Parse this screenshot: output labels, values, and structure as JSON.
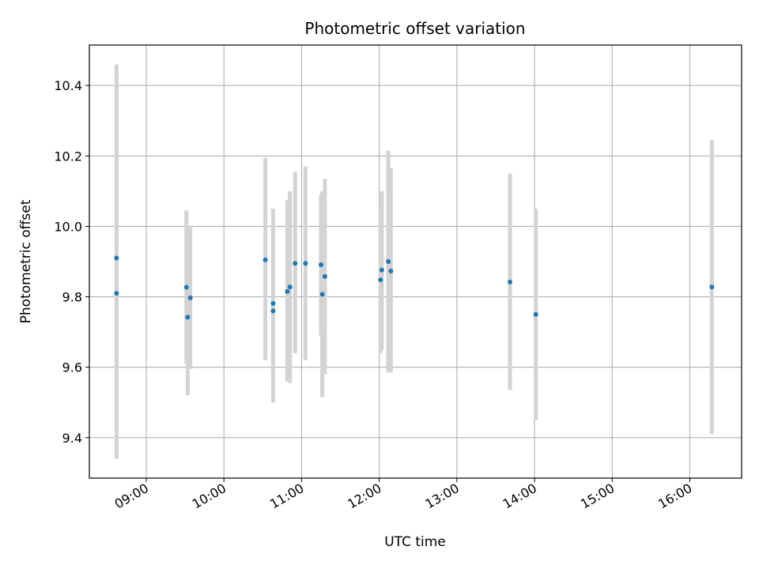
{
  "chart_data": {
    "type": "scatter",
    "title": "Photometric offset variation",
    "xlabel": "UTC time",
    "ylabel": "Photometric offset",
    "x_unit": "hours (UTC)",
    "xlim": [
      "08:16",
      "16:40"
    ],
    "ylim": [
      9.285,
      10.515
    ],
    "xticks": [
      "09:00",
      "10:00",
      "11:00",
      "12:00",
      "13:00",
      "14:00",
      "15:00",
      "16:00"
    ],
    "yticks": [
      9.4,
      9.6,
      9.8,
      10.0,
      10.2,
      10.4
    ],
    "grid": true,
    "colors": {
      "point": "#1f77b4",
      "errorbar": "#d3d3d3",
      "grid": "#b0b0b0"
    },
    "points": [
      {
        "x": "08:37",
        "y": 9.91,
        "lo": 9.54,
        "hi": 10.29
      },
      {
        "x": "08:37",
        "y": 9.81,
        "lo": 9.34,
        "hi": 10.46
      },
      {
        "x": "09:31",
        "y": 9.827,
        "lo": 9.61,
        "hi": 10.045
      },
      {
        "x": "09:32",
        "y": 9.742,
        "lo": 9.52,
        "hi": 9.965
      },
      {
        "x": "09:34",
        "y": 9.797,
        "lo": 9.595,
        "hi": 10.0
      },
      {
        "x": "10:32",
        "y": 9.905,
        "lo": 9.62,
        "hi": 10.195
      },
      {
        "x": "10:38",
        "y": 9.781,
        "lo": 9.56,
        "hi": 10.05
      },
      {
        "x": "10:38",
        "y": 9.76,
        "lo": 9.5,
        "hi": 10.02
      },
      {
        "x": "10:49",
        "y": 9.815,
        "lo": 9.56,
        "hi": 10.075
      },
      {
        "x": "10:51",
        "y": 9.828,
        "lo": 9.555,
        "hi": 10.1
      },
      {
        "x": "10:55",
        "y": 9.895,
        "lo": 9.64,
        "hi": 10.155
      },
      {
        "x": "11:03",
        "y": 9.895,
        "lo": 9.62,
        "hi": 10.17
      },
      {
        "x": "11:15",
        "y": 9.891,
        "lo": 9.69,
        "hi": 10.09
      },
      {
        "x": "11:16",
        "y": 9.807,
        "lo": 9.515,
        "hi": 10.1
      },
      {
        "x": "11:18",
        "y": 9.858,
        "lo": 9.58,
        "hi": 10.135
      },
      {
        "x": "12:01",
        "y": 9.848,
        "lo": 9.64,
        "hi": 10.06
      },
      {
        "x": "12:02",
        "y": 9.876,
        "lo": 9.65,
        "hi": 10.1
      },
      {
        "x": "12:07",
        "y": 9.9,
        "lo": 9.585,
        "hi": 10.215
      },
      {
        "x": "12:09",
        "y": 9.873,
        "lo": 9.585,
        "hi": 10.165
      },
      {
        "x": "13:41",
        "y": 9.842,
        "lo": 9.535,
        "hi": 10.15
      },
      {
        "x": "14:01",
        "y": 9.75,
        "lo": 9.45,
        "hi": 10.05
      },
      {
        "x": "16:17",
        "y": 9.828,
        "lo": 9.41,
        "hi": 10.245
      }
    ]
  }
}
